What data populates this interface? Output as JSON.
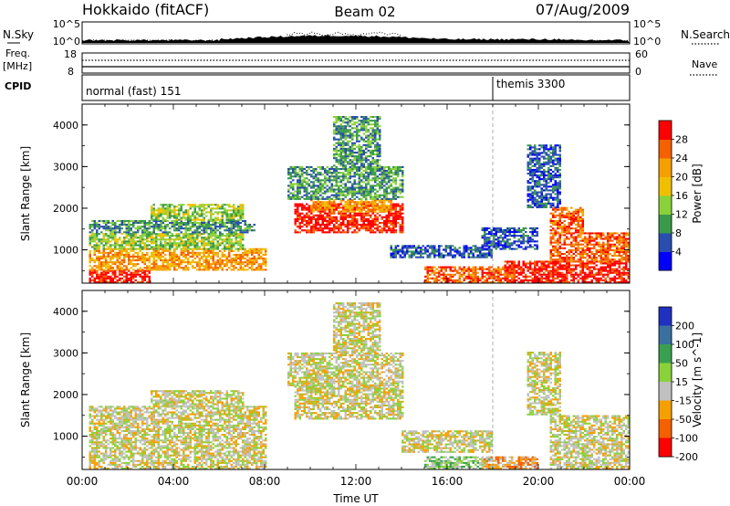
{
  "header": {
    "title": "Hokkaido (fitACF)",
    "beam": "Beam 02",
    "date": "07/Aug/2009"
  },
  "top_panels": {
    "nsky_label": "N.Sky",
    "nsky_ticks": [
      "10^5",
      "10^0"
    ],
    "nsearch_label": "N.Search",
    "nsearch_ticks": [
      "10^5",
      "10^0"
    ],
    "freq_label_1": "Freq.",
    "freq_label_2": "[MHz]",
    "freq_ticks": [
      "18",
      "8"
    ],
    "nave_label": "Nave",
    "nave_ticks": [
      "60",
      "0"
    ],
    "cpid_label": "CPID",
    "cpid_modes": [
      {
        "name": "normal (fast) 151",
        "start_hour": 0
      },
      {
        "name": "themis 3300",
        "start_hour": 18
      }
    ]
  },
  "chart_data": [
    {
      "type": "heatmap",
      "name": "power",
      "ylabel": "Slant Range [km]",
      "yticks": [
        "1000",
        "2000",
        "3000",
        "4000"
      ],
      "ylim": [
        200,
        4500
      ],
      "xlim": [
        0,
        24
      ],
      "colorbar": {
        "label": "Power [dB]",
        "ticks": [
          "4",
          "8",
          "12",
          "16",
          "20",
          "24",
          "28"
        ],
        "colors": [
          "#0000ff",
          "#2a4db0",
          "#3a9a4a",
          "#8ad23a",
          "#f0c000",
          "#f5a000",
          "#f56000",
          "#ff0000"
        ]
      },
      "regions": [
        {
          "t0": 0.3,
          "t1": 3.0,
          "r0": 200,
          "r1": 500,
          "level": 7
        },
        {
          "t0": 0.3,
          "t1": 8.0,
          "r0": 500,
          "r1": 1000,
          "level": 5
        },
        {
          "t0": 0.3,
          "t1": 7.0,
          "r0": 1000,
          "r1": 1400,
          "level": 3
        },
        {
          "t0": 0.3,
          "t1": 7.5,
          "r0": 1400,
          "r1": 1700,
          "level": 2
        },
        {
          "t0": 3.0,
          "t1": 7.0,
          "r0": 1700,
          "r1": 2100,
          "level": 3
        },
        {
          "t0": 9.3,
          "t1": 14.0,
          "r0": 1400,
          "r1": 2100,
          "level": 7
        },
        {
          "t0": 10.0,
          "t1": 13.5,
          "r0": 1900,
          "r1": 2200,
          "level": 5
        },
        {
          "t0": 9.0,
          "t1": 14.0,
          "r0": 2200,
          "r1": 3000,
          "level": 2
        },
        {
          "t0": 11.0,
          "t1": 13.0,
          "r0": 3000,
          "r1": 4200,
          "level": 2
        },
        {
          "t0": 13.5,
          "t1": 18.0,
          "r0": 800,
          "r1": 1100,
          "level": 1
        },
        {
          "t0": 15.0,
          "t1": 19.0,
          "r0": 200,
          "r1": 600,
          "level": 6
        },
        {
          "t0": 18.5,
          "t1": 24.0,
          "r0": 200,
          "r1": 700,
          "level": 7
        },
        {
          "t0": 20.5,
          "t1": 24.0,
          "r0": 700,
          "r1": 1400,
          "level": 6
        },
        {
          "t0": 20.5,
          "t1": 22.0,
          "r0": 1400,
          "r1": 2000,
          "level": 6
        },
        {
          "t0": 19.5,
          "t1": 21.0,
          "r0": 2000,
          "r1": 3500,
          "level": 1
        },
        {
          "t0": 17.5,
          "t1": 20.0,
          "r0": 1000,
          "r1": 1500,
          "level": 1
        }
      ]
    },
    {
      "type": "heatmap",
      "name": "velocity",
      "ylabel": "Slant Range [km]",
      "yticks": [
        "1000",
        "2000",
        "3000",
        "4000"
      ],
      "ylim": [
        200,
        4500
      ],
      "xlim": [
        0,
        24
      ],
      "xlabel": "Time UT",
      "xticks": [
        "00:00",
        "04:00",
        "08:00",
        "12:00",
        "16:00",
        "20:00",
        "00:00"
      ],
      "colorbar": {
        "label": "Velocity [m s^-1]",
        "ticks": [
          "200",
          "100",
          "50",
          "15",
          "-15",
          "-50",
          "-100",
          "-200"
        ],
        "colors": [
          "#2030c0",
          "#3a70a0",
          "#3aa050",
          "#8ad23a",
          "#c0c0c0",
          "#f5a000",
          "#f56000",
          "#ff0000"
        ]
      },
      "regions": [
        {
          "t0": 0.3,
          "t1": 8.0,
          "r0": 200,
          "r1": 1700,
          "level": 4
        },
        {
          "t0": 3.0,
          "t1": 7.0,
          "r0": 1700,
          "r1": 2100,
          "level": 4
        },
        {
          "t0": 9.3,
          "t1": 14.0,
          "r0": 1400,
          "r1": 2200,
          "level": 4
        },
        {
          "t0": 9.0,
          "t1": 14.0,
          "r0": 2200,
          "r1": 3000,
          "level": 4
        },
        {
          "t0": 11.0,
          "t1": 13.0,
          "r0": 3000,
          "r1": 4200,
          "level": 4
        },
        {
          "t0": 14.0,
          "t1": 18.0,
          "r0": 600,
          "r1": 1100,
          "level": 4
        },
        {
          "t0": 15.0,
          "t1": 18.0,
          "r0": 200,
          "r1": 500,
          "level": 3
        },
        {
          "t0": 17.5,
          "t1": 20.0,
          "r0": 200,
          "r1": 500,
          "level": 5
        },
        {
          "t0": 20.5,
          "t1": 24.0,
          "r0": 200,
          "r1": 1500,
          "level": 4
        },
        {
          "t0": 19.5,
          "t1": 21.0,
          "r0": 1500,
          "r1": 3000,
          "level": 4
        }
      ]
    }
  ]
}
